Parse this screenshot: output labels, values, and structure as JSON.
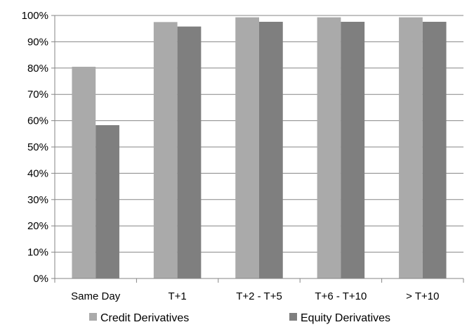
{
  "chart_data": {
    "type": "bar",
    "categories": [
      "Same Day",
      "T+1",
      "T+2 - T+5",
      "T+6 - T+10",
      "> T+10"
    ],
    "series": [
      {
        "name": "Credit Derivatives",
        "values": [
          80.5,
          97.5,
          99.3,
          99.3,
          99.3
        ],
        "color": "#aaaaaa"
      },
      {
        "name": "Equity Derivatives",
        "values": [
          58.3,
          95.8,
          97.6,
          97.6,
          97.6
        ],
        "color": "#7f7f7f"
      }
    ],
    "ylim": [
      0,
      100
    ],
    "yticks": [
      "0%",
      "10%",
      "20%",
      "30%",
      "40%",
      "50%",
      "60%",
      "70%",
      "80%",
      "90%",
      "100%"
    ],
    "grid": true,
    "legend_position": "bottom",
    "title": "",
    "xlabel": "",
    "ylabel": ""
  }
}
